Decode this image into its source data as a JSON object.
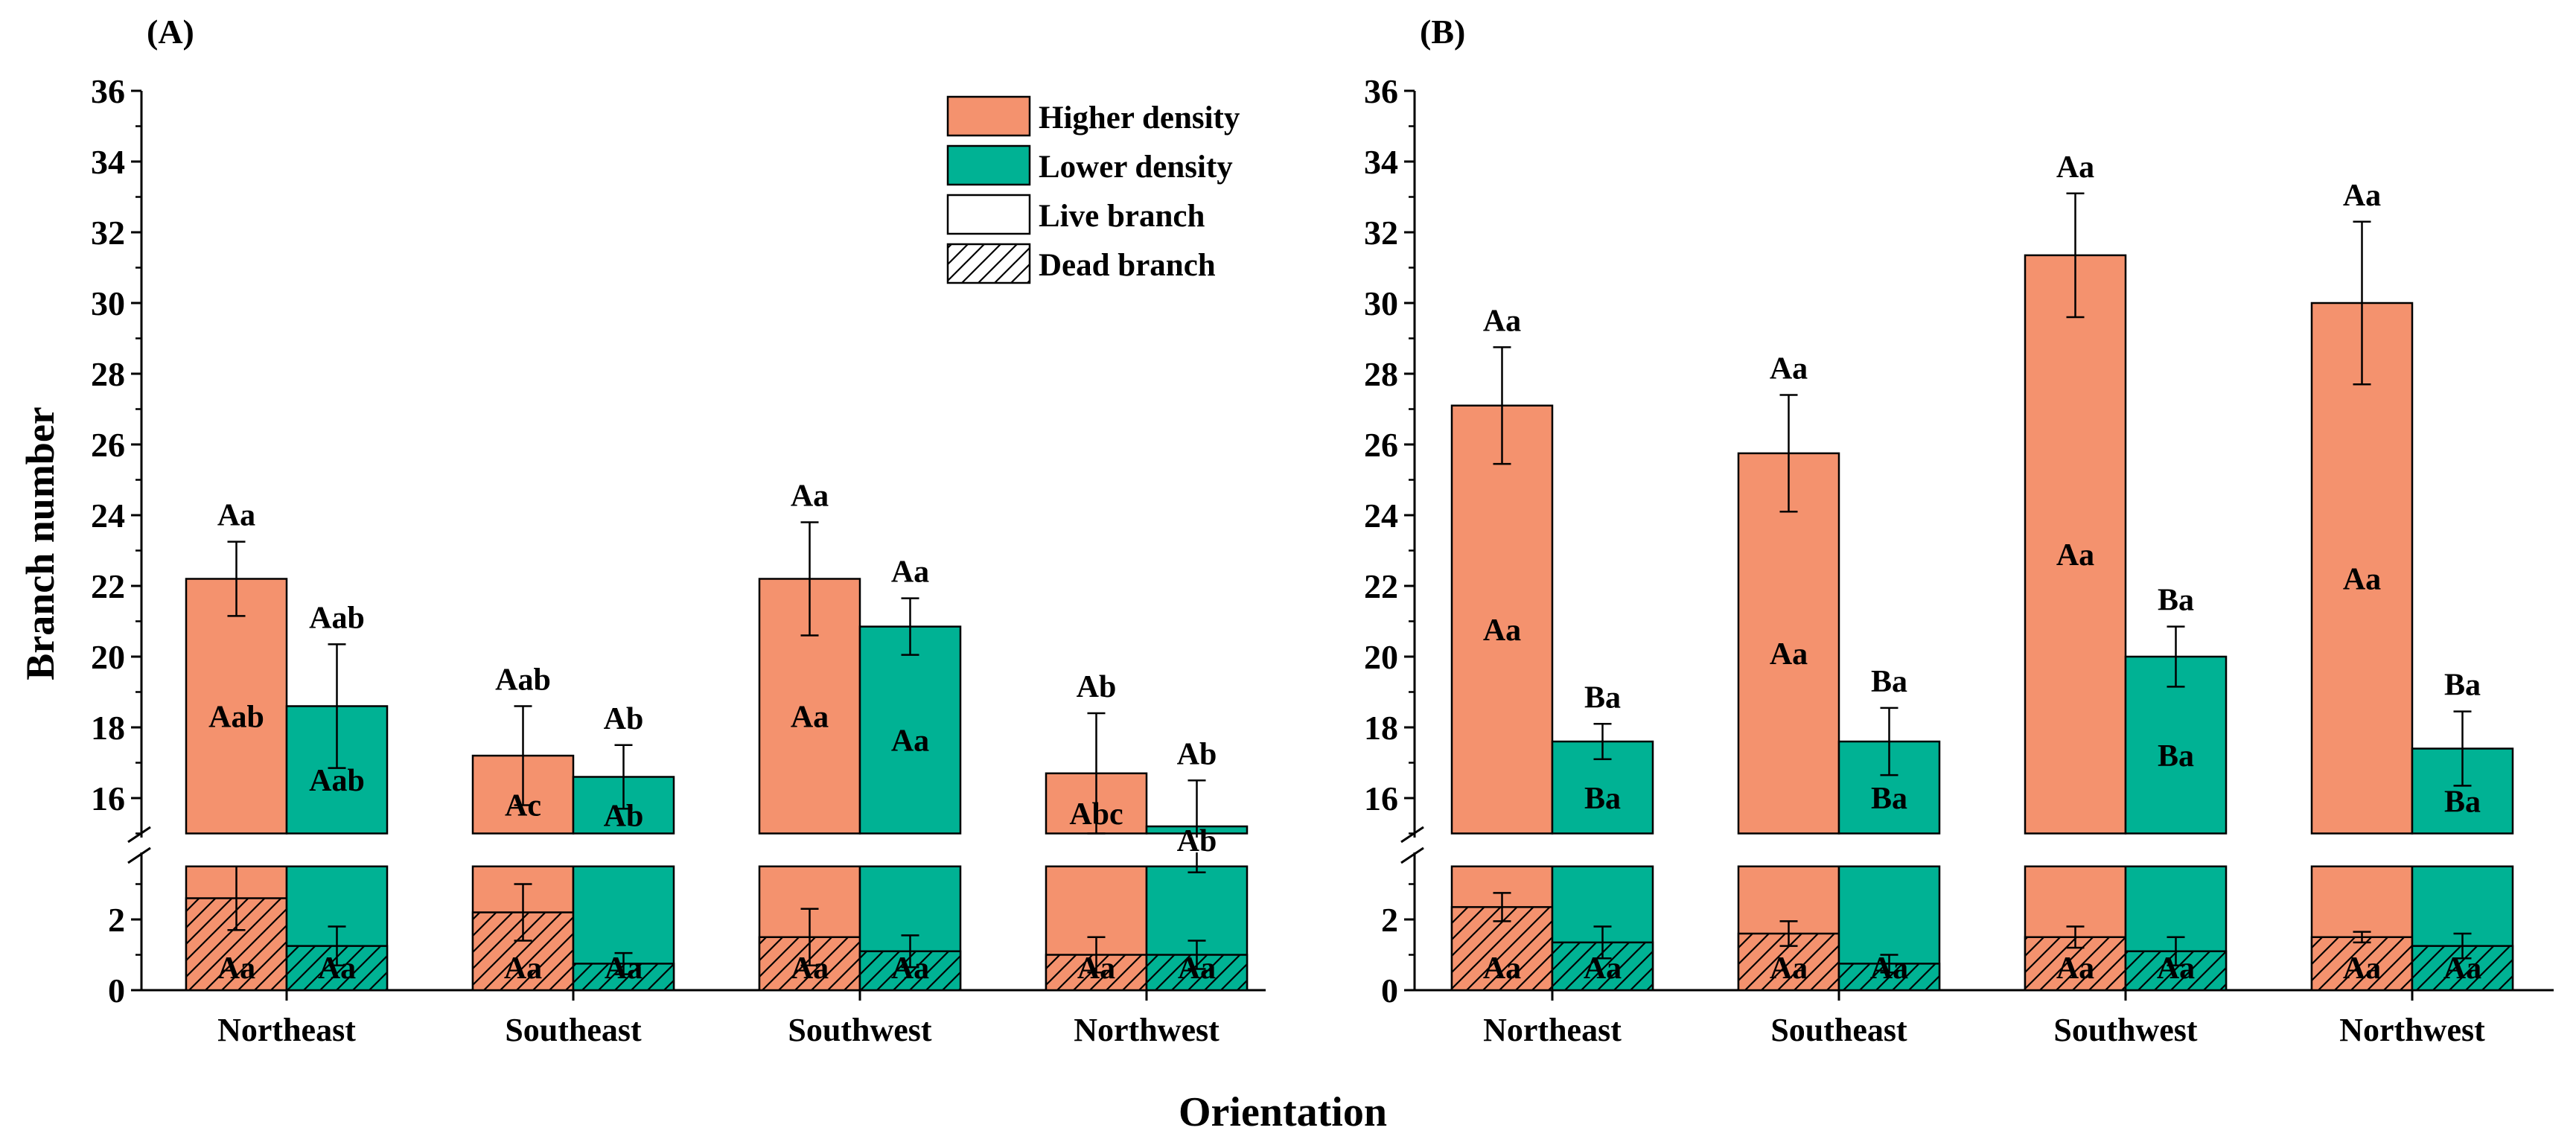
{
  "colors": {
    "higher": "#F4926E",
    "lower": "#00B294",
    "axis": "#000000",
    "hatch": "#000000"
  },
  "y_label": "Branch number",
  "x_label": "Orientation",
  "legend": [
    "Higher density",
    "Lower density",
    "Live branch",
    "Dead branch"
  ],
  "chart_data": [
    {
      "panel": "(A)",
      "type": "bar",
      "subtype": "stacked grouped bar with broken y-axis",
      "xlabel": "Orientation",
      "ylabel": "Branch number",
      "y_break": [
        3.5,
        15
      ],
      "ylim": [
        0,
        36
      ],
      "yticks_lower": [
        "2",
        "0"
      ],
      "yticks_upper": [
        "36",
        "34",
        "32",
        "30",
        "28",
        "26",
        "24",
        "22",
        "20",
        "18",
        "16"
      ],
      "categories": [
        "Northeast",
        "Southeast",
        "Southwest",
        "Northwest"
      ],
      "series": [
        {
          "name": "Higher density",
          "total": [
            22.2,
            17.2,
            22.2,
            16.7
          ],
          "total_err": [
            1.05,
            1.4,
            1.6,
            1.7
          ],
          "total_label": [
            "Aa",
            "Aab",
            "Aa",
            "Ab"
          ],
          "live_label": [
            "Aab",
            "Ac",
            "Aa",
            "Abc"
          ],
          "dead": [
            2.6,
            2.2,
            1.5,
            1.0
          ],
          "dead_err": [
            0.9,
            0.8,
            0.8,
            0.5
          ],
          "dead_label": [
            "Aa",
            "Aa",
            "Aa",
            "Aa"
          ]
        },
        {
          "name": "Lower density",
          "total": [
            18.6,
            16.6,
            20.85,
            15.2
          ],
          "total_err": [
            1.75,
            0.9,
            0.8,
            1.3
          ],
          "total_label": [
            "Aab",
            "Ab",
            "Aa",
            "Ab"
          ],
          "live_label": [
            "Aab",
            "Ab",
            "Aa",
            "Ab"
          ],
          "dead": [
            1.25,
            0.75,
            1.1,
            1.0
          ],
          "dead_err": [
            0.55,
            0.3,
            0.45,
            0.4
          ],
          "dead_label": [
            "Aa",
            "Aa",
            "Aa",
            "Aa"
          ]
        }
      ]
    },
    {
      "panel": "(B)",
      "type": "bar",
      "subtype": "stacked grouped bar with broken y-axis",
      "xlabel": "Orientation",
      "ylabel": "Branch number",
      "y_break": [
        3.5,
        15
      ],
      "ylim": [
        0,
        36
      ],
      "yticks_lower": [
        "2",
        "0"
      ],
      "yticks_upper": [
        "36",
        "34",
        "32",
        "30",
        "28",
        "26",
        "24",
        "22",
        "20",
        "18",
        "16"
      ],
      "categories": [
        "Northeast",
        "Southeast",
        "Southwest",
        "Northwest"
      ],
      "series": [
        {
          "name": "Higher density",
          "total": [
            27.1,
            25.75,
            31.35,
            30.0
          ],
          "total_err": [
            1.65,
            1.65,
            1.75,
            2.3
          ],
          "total_label": [
            "Aa",
            "Aa",
            "Aa",
            "Aa"
          ],
          "live_label": [
            "Aa",
            "Aa",
            "Aa",
            "Aa"
          ],
          "dead": [
            2.35,
            1.6,
            1.5,
            1.5
          ],
          "dead_err": [
            0.4,
            0.35,
            0.3,
            0.15
          ],
          "dead_label": [
            "Aa",
            "Aa",
            "Aa",
            "Aa"
          ]
        },
        {
          "name": "Lower density",
          "total": [
            17.6,
            17.6,
            20.0,
            17.4
          ],
          "total_err": [
            0.5,
            0.95,
            0.85,
            1.05
          ],
          "total_label": [
            "Ba",
            "Ba",
            "Ba",
            "Ba"
          ],
          "live_label": [
            "Ba",
            "Ba",
            "Ba",
            "Ba"
          ],
          "dead": [
            1.35,
            0.75,
            1.1,
            1.25
          ],
          "dead_err": [
            0.45,
            0.25,
            0.4,
            0.35
          ],
          "dead_label": [
            "Aa",
            "Aa",
            "Aa",
            "Aa"
          ]
        }
      ]
    }
  ]
}
